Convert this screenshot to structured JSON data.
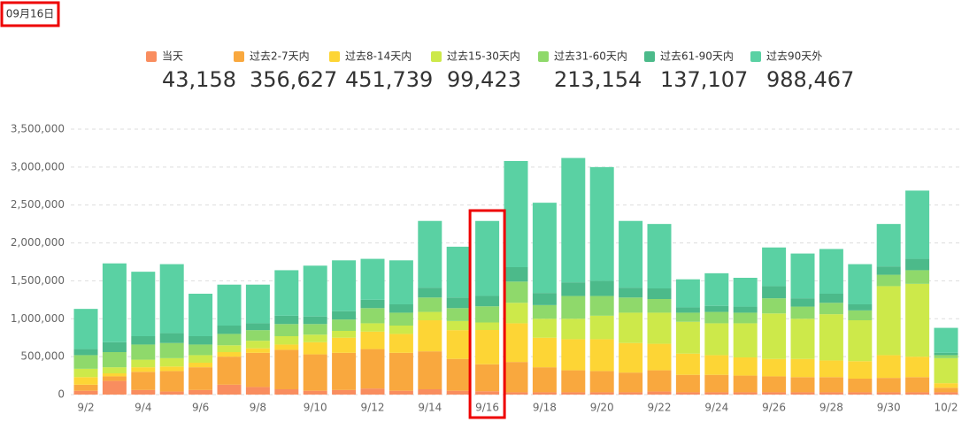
{
  "chart_data": {
    "type": "bar",
    "stacked": true,
    "selected_date": "09月16日",
    "highlight": 14,
    "categories": [
      "9/2",
      null,
      "9/4",
      null,
      "9/6",
      null,
      "9/8",
      null,
      "9/10",
      null,
      "9/12",
      null,
      "9/14",
      null,
      "9/16",
      null,
      "9/18",
      null,
      "9/20",
      null,
      "9/22",
      null,
      "9/24",
      null,
      "9/26",
      null,
      "9/28",
      null,
      "9/30",
      null,
      "10/2"
    ],
    "ylim": [
      0,
      3500000
    ],
    "yticks": [
      0,
      {
        "value": 500000,
        "label": "500,000"
      },
      {
        "value": 1000000,
        "label": "1,000,000"
      },
      {
        "value": 1500000,
        "label": "1,500,000"
      },
      {
        "value": 2000000,
        "label": "2,000,000"
      },
      {
        "value": 2500000,
        "label": "2,500,000"
      },
      {
        "value": 3000000,
        "label": "3,000,000"
      },
      {
        "value": 3500000,
        "label": "3,500,000"
      }
    ],
    "grid": true,
    "series": [
      {
        "name": "当天",
        "color": "#f98d5f",
        "summary": "43,158",
        "values": [
          50000,
          180000,
          60000,
          40000,
          60000,
          130000,
          100000,
          70000,
          50000,
          60000,
          80000,
          50000,
          70000,
          50000,
          43158,
          30000,
          30000,
          30000,
          30000,
          30000,
          40000,
          30000,
          30000,
          30000,
          30000,
          30000,
          30000,
          30000,
          30000,
          30000,
          30000
        ]
      },
      {
        "name": "过去2-7天内",
        "color": "#f9a83e",
        "summary": "356,627",
        "values": [
          80000,
          60000,
          240000,
          270000,
          300000,
          370000,
          450000,
          520000,
          480000,
          490000,
          520000,
          500000,
          500000,
          420000,
          356627,
          400000,
          330000,
          290000,
          280000,
          260000,
          280000,
          230000,
          230000,
          220000,
          210000,
          200000,
          200000,
          180000,
          190000,
          200000,
          60000
        ]
      },
      {
        "name": "过去8-14天内",
        "color": "#fdd535",
        "summary": "451,739",
        "values": [
          100000,
          40000,
          60000,
          60000,
          60000,
          60000,
          60000,
          70000,
          160000,
          200000,
          230000,
          250000,
          410000,
          380000,
          451739,
          510000,
          390000,
          410000,
          420000,
          390000,
          350000,
          280000,
          260000,
          240000,
          230000,
          240000,
          220000,
          230000,
          300000,
          270000,
          60000
        ]
      },
      {
        "name": "过去15-30天内",
        "color": "#cde94a",
        "summary": "99,423",
        "values": [
          110000,
          80000,
          100000,
          110000,
          100000,
          90000,
          100000,
          110000,
          100000,
          90000,
          110000,
          110000,
          110000,
          120000,
          99423,
          270000,
          250000,
          270000,
          310000,
          400000,
          410000,
          420000,
          420000,
          450000,
          600000,
          530000,
          610000,
          540000,
          910000,
          960000,
          330000
        ]
      },
      {
        "name": "过去31-60天内",
        "color": "#8fd96b",
        "summary": "213,154",
        "values": [
          180000,
          200000,
          200000,
          200000,
          140000,
          150000,
          140000,
          160000,
          140000,
          150000,
          200000,
          170000,
          190000,
          170000,
          213154,
          280000,
          180000,
          300000,
          260000,
          200000,
          180000,
          120000,
          150000,
          140000,
          200000,
          160000,
          150000,
          130000,
          150000,
          180000,
          40000
        ]
      },
      {
        "name": "过去61-90天内",
        "color": "#4cba8a",
        "summary": "137,107",
        "values": [
          80000,
          130000,
          110000,
          130000,
          110000,
          110000,
          90000,
          110000,
          100000,
          110000,
          110000,
          110000,
          130000,
          140000,
          137107,
          190000,
          160000,
          180000,
          200000,
          130000,
          140000,
          70000,
          80000,
          80000,
          160000,
          110000,
          120000,
          80000,
          110000,
          150000,
          30000
        ]
      },
      {
        "name": "过去90天外",
        "color": "#5ad1a3",
        "summary": "988,467",
        "values": [
          530000,
          1040000,
          850000,
          910000,
          560000,
          540000,
          510000,
          600000,
          670000,
          670000,
          540000,
          580000,
          880000,
          670000,
          988467,
          1400000,
          1190000,
          1640000,
          1500000,
          880000,
          850000,
          370000,
          430000,
          380000,
          510000,
          590000,
          590000,
          530000,
          560000,
          900000,
          330000
        ]
      }
    ]
  }
}
